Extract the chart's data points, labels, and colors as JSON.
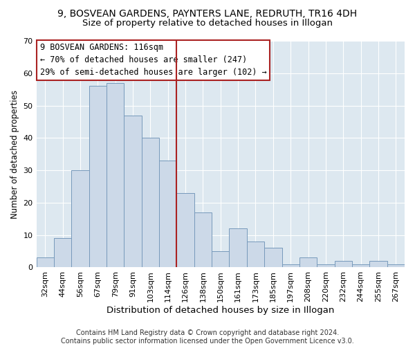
{
  "title": "9, BOSVEAN GARDENS, PAYNTERS LANE, REDRUTH, TR16 4DH",
  "subtitle": "Size of property relative to detached houses in Illogan",
  "xlabel": "Distribution of detached houses by size in Illogan",
  "ylabel": "Number of detached properties",
  "bar_color": "#ccd9e8",
  "bar_edge_color": "#7799bb",
  "categories": [
    "32sqm",
    "44sqm",
    "56sqm",
    "67sqm",
    "79sqm",
    "91sqm",
    "103sqm",
    "114sqm",
    "126sqm",
    "138sqm",
    "150sqm",
    "161sqm",
    "173sqm",
    "185sqm",
    "197sqm",
    "208sqm",
    "220sqm",
    "232sqm",
    "244sqm",
    "255sqm",
    "267sqm"
  ],
  "values": [
    3,
    9,
    30,
    56,
    57,
    47,
    40,
    33,
    23,
    17,
    5,
    12,
    8,
    6,
    1,
    3,
    1,
    2,
    1,
    2,
    1
  ],
  "vline_x": 7.5,
  "vline_color": "#aa2222",
  "annotation_title": "9 BOSVEAN GARDENS: 116sqm",
  "annotation_line1": "← 70% of detached houses are smaller (247)",
  "annotation_line2": "29% of semi-detached houses are larger (102) →",
  "annotation_box_color": "#ffffff",
  "annotation_box_edge": "#aa2222",
  "ylim": [
    0,
    70
  ],
  "yticks": [
    0,
    10,
    20,
    30,
    40,
    50,
    60,
    70
  ],
  "footnote": "Contains HM Land Registry data © Crown copyright and database right 2024.\nContains public sector information licensed under the Open Government Licence v3.0.",
  "title_fontsize": 10,
  "subtitle_fontsize": 9.5,
  "xlabel_fontsize": 9.5,
  "ylabel_fontsize": 8.5,
  "tick_fontsize": 8,
  "annot_fontsize": 8.5,
  "footnote_fontsize": 7
}
